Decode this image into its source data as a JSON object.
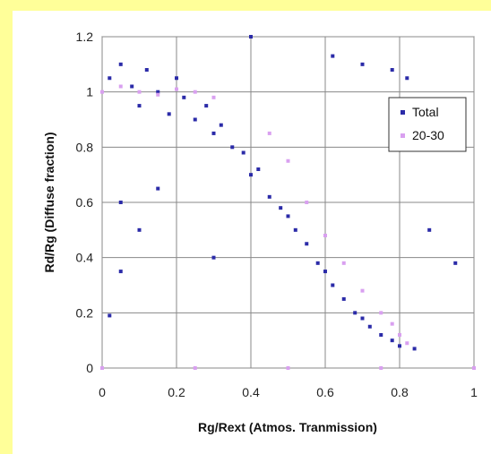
{
  "chart_data": {
    "type": "scatter",
    "xlabel": "Rg/Rext (Atmos. Tranmission)",
    "ylabel": "Rd/Rg (Diffuse fraction)",
    "xlim": [
      0,
      1
    ],
    "ylim": [
      0,
      1.2
    ],
    "x_ticks": [
      "0",
      "0.2",
      "0.4",
      "0.6",
      "0.8",
      "1"
    ],
    "y_ticks": [
      "0",
      "0.2",
      "0.4",
      "0.6",
      "0.8",
      "1",
      "1.2"
    ],
    "grid": true,
    "legend_position": "top-right",
    "series": [
      {
        "name": "Total",
        "color": "#2b2ba8",
        "marker": "small-dot",
        "points": [
          [
            0.02,
            1.05
          ],
          [
            0.05,
            1.1
          ],
          [
            0.08,
            1.02
          ],
          [
            0.1,
            0.95
          ],
          [
            0.12,
            1.08
          ],
          [
            0.15,
            1.0
          ],
          [
            0.18,
            0.92
          ],
          [
            0.2,
            1.05
          ],
          [
            0.22,
            0.98
          ],
          [
            0.25,
            0.9
          ],
          [
            0.28,
            0.95
          ],
          [
            0.3,
            0.85
          ],
          [
            0.32,
            0.88
          ],
          [
            0.35,
            0.8
          ],
          [
            0.38,
            0.78
          ],
          [
            0.4,
            0.7
          ],
          [
            0.42,
            0.72
          ],
          [
            0.45,
            0.62
          ],
          [
            0.48,
            0.58
          ],
          [
            0.5,
            0.55
          ],
          [
            0.52,
            0.5
          ],
          [
            0.55,
            0.45
          ],
          [
            0.58,
            0.38
          ],
          [
            0.6,
            0.35
          ],
          [
            0.62,
            0.3
          ],
          [
            0.65,
            0.25
          ],
          [
            0.68,
            0.2
          ],
          [
            0.7,
            0.18
          ],
          [
            0.72,
            0.15
          ],
          [
            0.75,
            0.12
          ],
          [
            0.78,
            0.1
          ],
          [
            0.8,
            0.08
          ],
          [
            0.84,
            0.07
          ],
          [
            0.05,
            0.6
          ],
          [
            0.05,
            0.35
          ],
          [
            0.1,
            0.5
          ],
          [
            0.15,
            0.65
          ],
          [
            0.3,
            0.4
          ],
          [
            0.62,
            1.13
          ],
          [
            0.7,
            1.1
          ],
          [
            0.78,
            1.08
          ],
          [
            0.82,
            1.05
          ],
          [
            0.4,
            1.2
          ],
          [
            0.88,
            0.5
          ],
          [
            0.95,
            0.38
          ],
          [
            0.02,
            0.19
          ]
        ]
      },
      {
        "name": "20-30",
        "color": "#d9a0f0",
        "marker": "small-dot",
        "points": [
          [
            0.0,
            1.0
          ],
          [
            0.05,
            1.02
          ],
          [
            0.1,
            1.0
          ],
          [
            0.15,
            0.99
          ],
          [
            0.2,
            1.01
          ],
          [
            0.25,
            1.0
          ],
          [
            0.3,
            0.98
          ],
          [
            0.45,
            0.85
          ],
          [
            0.5,
            0.75
          ],
          [
            0.55,
            0.6
          ],
          [
            0.6,
            0.48
          ],
          [
            0.65,
            0.38
          ],
          [
            0.7,
            0.28
          ],
          [
            0.75,
            0.2
          ],
          [
            0.78,
            0.16
          ],
          [
            0.8,
            0.12
          ],
          [
            0.82,
            0.09
          ],
          [
            0.0,
            0.0
          ],
          [
            0.25,
            0.0
          ],
          [
            0.5,
            0.0
          ],
          [
            0.75,
            0.0
          ],
          [
            1.0,
            0.0
          ]
        ]
      }
    ]
  }
}
